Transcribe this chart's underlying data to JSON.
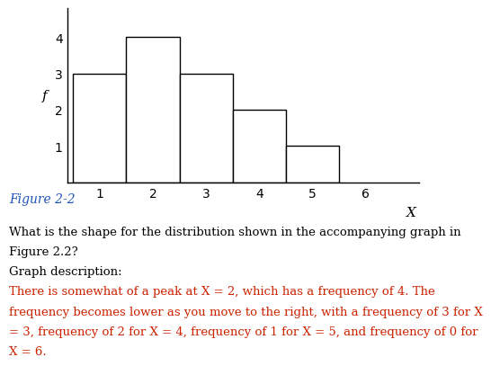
{
  "x_values": [
    1,
    2,
    3,
    4,
    5
  ],
  "frequencies": [
    3,
    4,
    3,
    2,
    1
  ],
  "bar_color": "#ffffff",
  "bar_edge_color": "#000000",
  "bar_linewidth": 1.0,
  "xlabel": "X",
  "ylabel": "f",
  "xticks": [
    1,
    2,
    3,
    4,
    5,
    6
  ],
  "yticks": [
    1,
    2,
    3,
    4
  ],
  "ylim": [
    0,
    4.8
  ],
  "xlim": [
    0.4,
    7.0
  ],
  "figure_label": "Figure 2-2",
  "figure_label_color": "#2255bb",
  "figure_label_fontsize": 10,
  "question_line1": "What is the shape for the distribution shown in the accompanying graph in",
  "question_line2": "Figure 2.2?",
  "graph_desc_label": "Graph description:",
  "body_line1": "There is somewhat of a peak at X = 2, which has a frequency of 4. The",
  "body_line2": "frequency becomes lower as you move to the right, with a frequency of 3 for X",
  "body_line3": "= 3, frequency of 2 for X = 4, frequency of 1 for X = 5, and frequency of 0 for",
  "body_line4": "X = 6.",
  "text_color_black": "#000000",
  "text_color_red": "#cc2200",
  "body_fontsize": 9.5,
  "axis_fontsize": 10,
  "tick_fontsize": 10,
  "font_family": "DejaVu Serif"
}
